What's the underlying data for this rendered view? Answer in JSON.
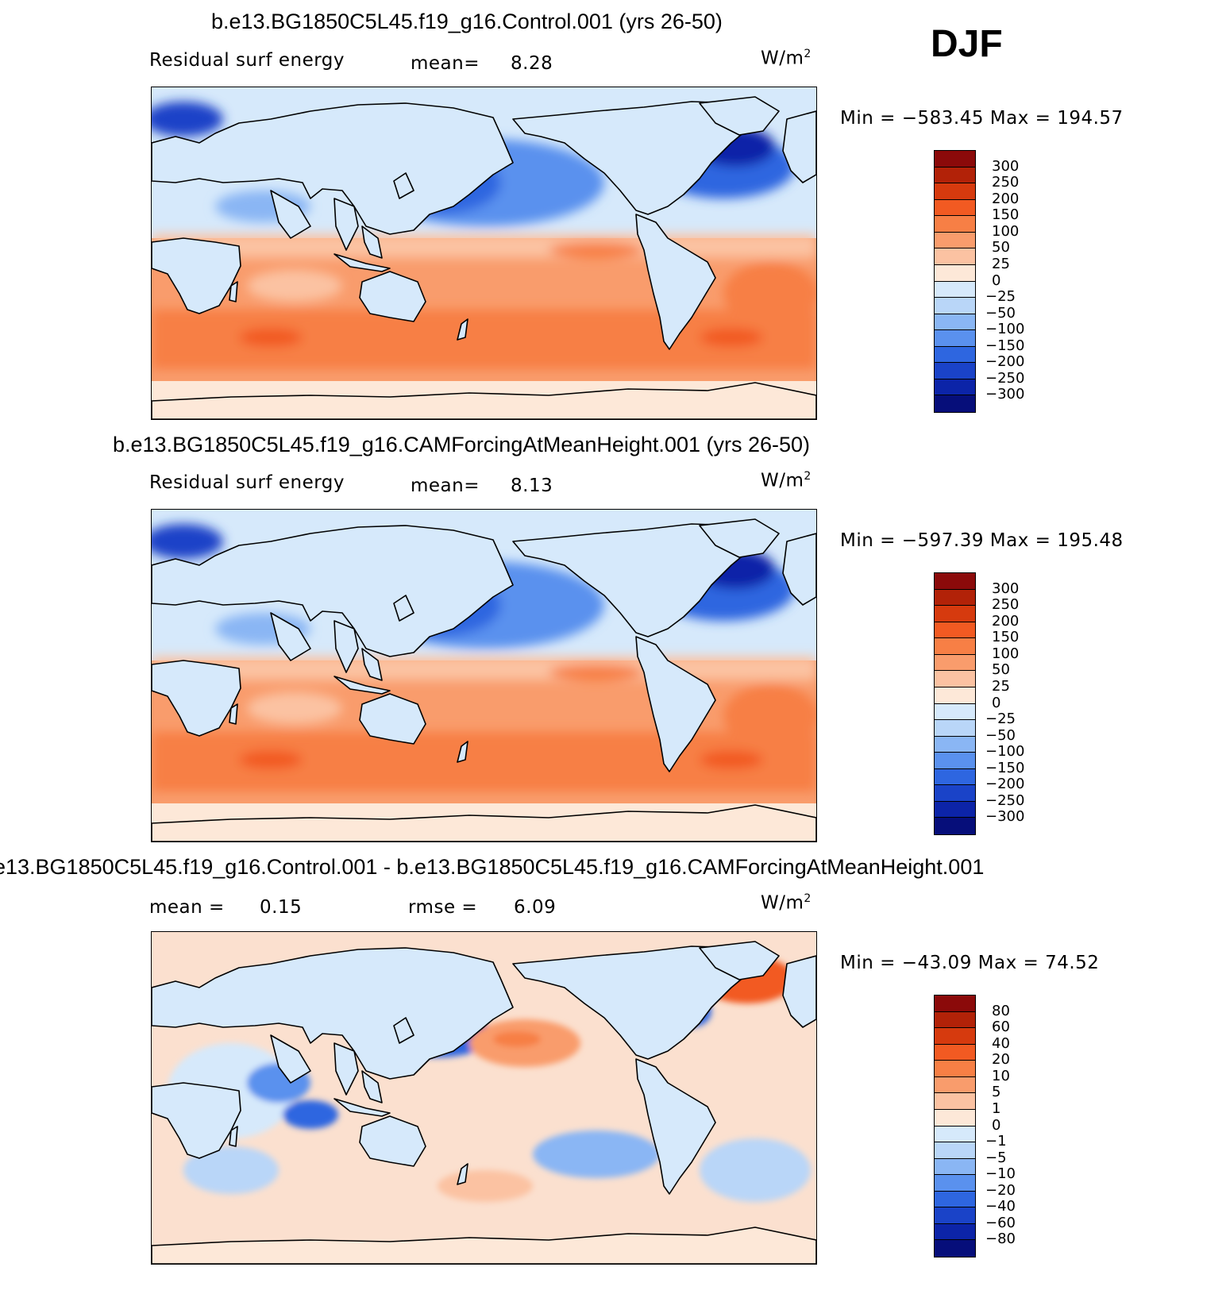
{
  "season": "DJF",
  "units_base": "W/m",
  "units_exp": "2",
  "panels": [
    {
      "title": "b.e13.BG1850C5L45.f19_g16.Control.001 (yrs 26-50)",
      "variable": "Residual surf energy",
      "stat1_label": "mean=",
      "stat1_value": "8.28",
      "minmax": "Min = −583.45 Max = 194.57",
      "colorbar": {
        "labels": [
          "300",
          "250",
          "200",
          "150",
          "100",
          "50",
          "25",
          "0",
          "−25",
          "−50",
          "−100",
          "−150",
          "−200",
          "−250",
          "−300"
        ],
        "colors": [
          "#8b0a0a",
          "#b22208",
          "#d63a0e",
          "#f25a22",
          "#f77f45",
          "#f99c6c",
          "#fbc2a2",
          "#fde8d8",
          "#d6e9fb",
          "#b9d6f8",
          "#8ab6f4",
          "#5a91ee",
          "#2e66e0",
          "#1a43c8",
          "#0c24a8",
          "#060e7a"
        ]
      },
      "map_type": "absolute"
    },
    {
      "title": "b.e13.BG1850C5L45.f19_g16.CAMForcingAtMeanHeight.001 (yrs 26-50)",
      "variable": "Residual surf energy",
      "stat1_label": "mean=",
      "stat1_value": "8.13",
      "minmax": "Min = −597.39 Max = 195.48",
      "colorbar": {
        "labels": [
          "300",
          "250",
          "200",
          "150",
          "100",
          "50",
          "25",
          "0",
          "−25",
          "−50",
          "−100",
          "−150",
          "−200",
          "−250",
          "−300"
        ],
        "colors": [
          "#8b0a0a",
          "#b22208",
          "#d63a0e",
          "#f25a22",
          "#f77f45",
          "#f99c6c",
          "#fbc2a2",
          "#fde8d8",
          "#d6e9fb",
          "#b9d6f8",
          "#8ab6f4",
          "#5a91ee",
          "#2e66e0",
          "#1a43c8",
          "#0c24a8",
          "#060e7a"
        ]
      },
      "map_type": "absolute"
    },
    {
      "title": "e13.BG1850C5L45.f19_g16.Control.001 - b.e13.BG1850C5L45.f19_g16.CAMForcingAtMeanHeight.001",
      "variable": "",
      "stat1_label": "mean =",
      "stat1_value": "0.15",
      "stat2_label": "rmse =",
      "stat2_value": "6.09",
      "minmax": "Min = −43.09 Max =  74.52",
      "colorbar": {
        "labels": [
          "80",
          "60",
          "40",
          "20",
          "10",
          "5",
          "1",
          "0",
          "−1",
          "−5",
          "−10",
          "−20",
          "−40",
          "−60",
          "−80"
        ],
        "colors": [
          "#8b0a0a",
          "#b22208",
          "#d63a0e",
          "#f25a22",
          "#f77f45",
          "#f99c6c",
          "#fbc2a2",
          "#fde8d8",
          "#d6e9fb",
          "#b9d6f8",
          "#8ab6f4",
          "#5a91ee",
          "#2e66e0",
          "#1a43c8",
          "#0c24a8",
          "#060e7a"
        ]
      },
      "map_type": "difference"
    }
  ]
}
